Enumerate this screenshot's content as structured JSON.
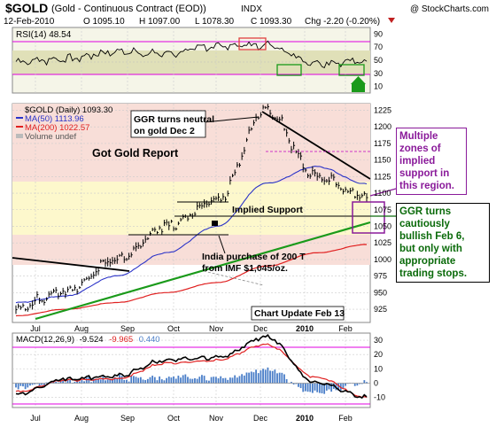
{
  "header": {
    "symbol": "$GOLD",
    "name": "(Gold - Continuous Contract (EOD))",
    "exchange": "INDX",
    "watermark": "@ StockCharts.com",
    "date": "12-Feb-2010",
    "open": "O 1095.10",
    "high": "H 1097.00",
    "low": "L 1078.30",
    "close": "C 1093.30",
    "change": "Chg -2.20 (-0.20%)"
  },
  "rsi": {
    "label": "RSI(14) 48.54",
    "ticks": [
      "90",
      "70",
      "50",
      "30",
      "10"
    ]
  },
  "price": {
    "legend_main": "$GOLD (Daily) 1093.30",
    "legend_ma50": "MA(50) 1113.96",
    "legend_ma200": "MA(200) 1022.57",
    "legend_volume": "Volume undef",
    "ticks": [
      "1225",
      "1200",
      "1175",
      "1150",
      "1125",
      "1100",
      "1075",
      "1050",
      "1025",
      "1000",
      "975",
      "950",
      "925"
    ]
  },
  "macd": {
    "label": "MACD(12,26,9)",
    "value": "-9.524",
    "signal": "-9.965",
    "hist": "0.440",
    "ticks": [
      "30",
      "20",
      "10",
      "0",
      "-10"
    ]
  },
  "xaxis": {
    "months": [
      "Jul",
      "Aug",
      "Sep",
      "Oct",
      "Nov",
      "Dec",
      "2010",
      "Feb"
    ]
  },
  "annotations": {
    "title": "Got Gold Report",
    "neutral": [
      "GGR turns neutral",
      "on gold Dec 2"
    ],
    "support": "Implied Support",
    "india": [
      "India purchase of 200 T",
      "from IMF $1,045/oz."
    ],
    "update": "Chart Update Feb 13",
    "multiple": [
      "Multiple",
      "zones of",
      "implied",
      "support in",
      "this region."
    ],
    "bullish": [
      "GGR turns",
      "cautiously",
      "bullish Feb 6,",
      "but only with",
      "appropriate",
      "trading stops."
    ]
  },
  "colors": {
    "price": "#000000",
    "ma50": "#2b33c8",
    "ma200": "#e02020",
    "uptrend": "#1a9a1a",
    "macd_signal": "#e02020",
    "macd_hist": "#4a7ec8",
    "rsi_zone": "#e0e0b8",
    "overbought_box": "#e06060",
    "oversold_box": "#1a9a1a",
    "annotation_purple": "#8a1a9a",
    "annotation_green": "#0a6a0a"
  },
  "chart_data": [
    {
      "type": "line",
      "name": "RSI(14)",
      "ylim": [
        0,
        100
      ],
      "x": [
        "Jul",
        "Aug",
        "Sep",
        "Oct",
        "Nov",
        "Dec",
        "2010",
        "Feb"
      ],
      "series": [
        {
          "name": "RSI(14)",
          "values": [
            48,
            52,
            63,
            60,
            72,
            73,
            46,
            48.54
          ]
        }
      ]
    },
    {
      "type": "line",
      "title": "$GOLD (Daily) 1093.30",
      "ylim": [
        905,
        1235
      ],
      "x": [
        "Jul",
        "Aug",
        "Sep",
        "Oct",
        "Nov",
        "Dec",
        "2010",
        "Feb"
      ],
      "series": [
        {
          "name": "$GOLD (Daily)",
          "values": [
            928,
            950,
            1000,
            1050,
            1090,
            1225,
            1125,
            1093.3
          ]
        },
        {
          "name": "MA(50)",
          "values": [
            935,
            945,
            975,
            1010,
            1050,
            1115,
            1140,
            1113.96
          ]
        },
        {
          "name": "MA(200)",
          "values": [
            915,
            925,
            935,
            950,
            965,
            990,
            1010,
            1022.57
          ]
        }
      ]
    },
    {
      "type": "line",
      "title": "MACD(12,26,9)",
      "ylim": [
        -17,
        35
      ],
      "x": [
        "Jul",
        "Aug",
        "Sep",
        "Oct",
        "Nov",
        "Dec",
        "2010",
        "Feb"
      ],
      "series": [
        {
          "name": "MACD",
          "values": [
            -8,
            3,
            5,
            16,
            18,
            32,
            0,
            -9.524
          ]
        },
        {
          "name": "Signal",
          "values": [
            -6,
            2,
            3,
            14,
            16,
            27,
            4,
            -9.965
          ]
        },
        {
          "name": "Histogram",
          "values": [
            -2,
            1,
            2,
            2,
            2,
            5,
            -4,
            0.44
          ]
        }
      ]
    }
  ]
}
